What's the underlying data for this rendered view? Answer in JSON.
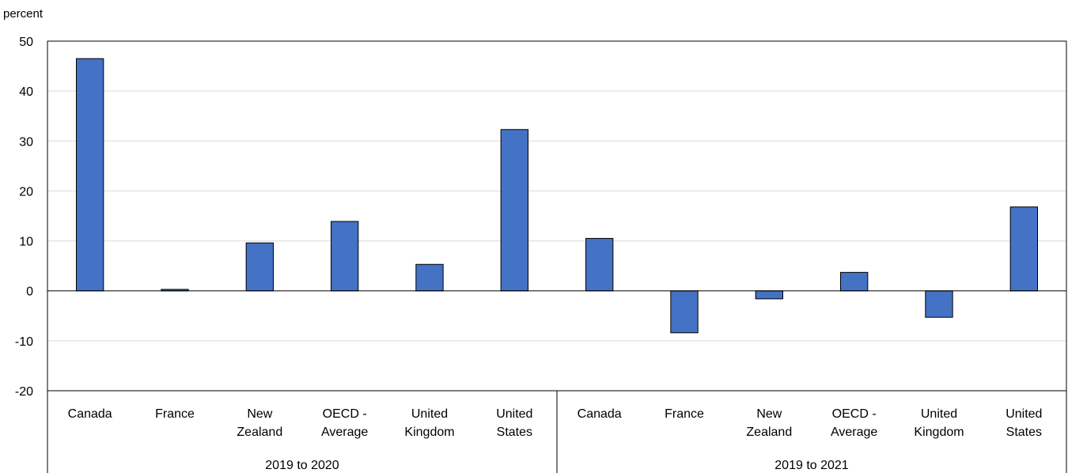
{
  "chart_data": {
    "type": "bar",
    "ylabel": "percent",
    "ylim": [
      -20,
      50
    ],
    "yticks": [
      50,
      40,
      30,
      20,
      10,
      0,
      -10,
      -20
    ],
    "grid": true,
    "legend": "none",
    "bar_color": "#4472C4",
    "groups": [
      {
        "label": "2019 to 2020",
        "categories": [
          [
            "Canada"
          ],
          [
            "France"
          ],
          [
            "New",
            "Zealand"
          ],
          [
            "OECD -",
            "Average"
          ],
          [
            "United",
            "Kingdom"
          ],
          [
            "United",
            "States"
          ]
        ],
        "values": [
          46.5,
          0.3,
          9.6,
          13.9,
          5.3,
          32.3
        ]
      },
      {
        "label": "2019 to 2021",
        "categories": [
          [
            "Canada"
          ],
          [
            "France"
          ],
          [
            "New",
            "Zealand"
          ],
          [
            "OECD -",
            "Average"
          ],
          [
            "United",
            "Kingdom"
          ],
          [
            "United",
            "States"
          ]
        ],
        "values": [
          10.5,
          -8.4,
          -1.6,
          3.7,
          -5.3,
          16.8
        ]
      }
    ]
  }
}
